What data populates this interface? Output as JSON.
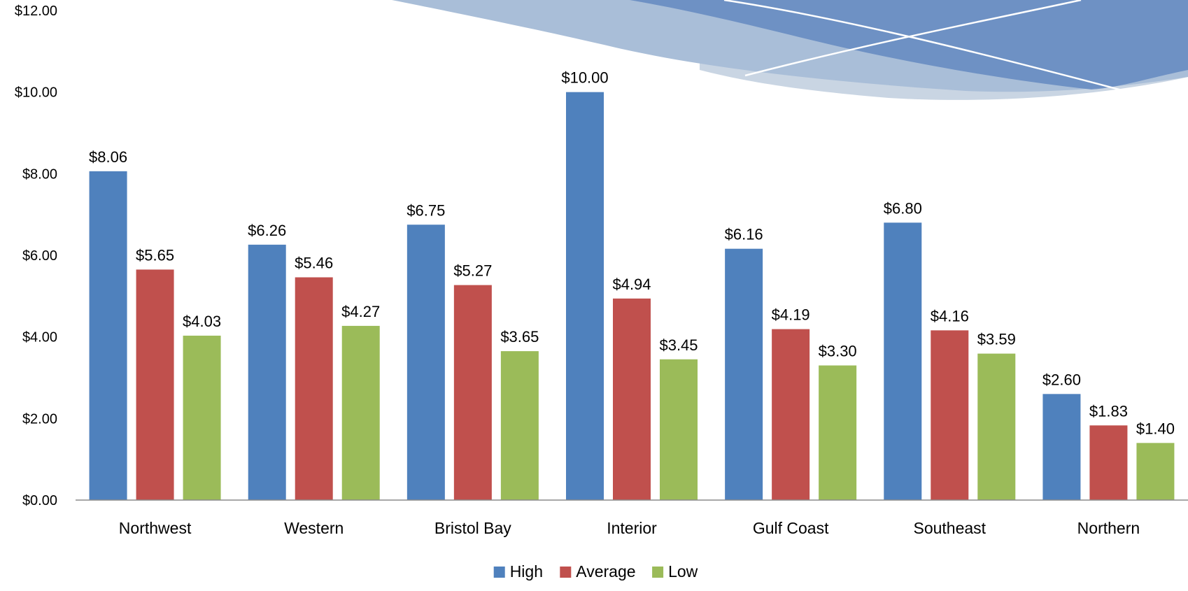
{
  "chart_data": {
    "type": "bar",
    "categories": [
      "Northwest",
      "Western",
      "Bristol Bay",
      "Interior",
      "Gulf Coast",
      "Southeast",
      "Northern"
    ],
    "series": [
      {
        "name": "High",
        "color": "#4F81BD",
        "values": [
          8.06,
          6.26,
          6.75,
          10.0,
          6.16,
          6.8,
          2.6
        ],
        "labels": [
          "$8.06",
          "$6.26",
          "$6.75",
          "$10.00",
          "$6.16",
          "$6.80",
          "$2.60"
        ]
      },
      {
        "name": "Average",
        "color": "#C0504D",
        "values": [
          5.65,
          5.46,
          5.27,
          4.94,
          4.19,
          4.16,
          1.83
        ],
        "labels": [
          "$5.65",
          "$5.46",
          "$5.27",
          "$4.94",
          "$4.19",
          "$4.16",
          "$1.83"
        ]
      },
      {
        "name": "Low",
        "color": "#9BBB59",
        "values": [
          4.03,
          4.27,
          3.65,
          3.45,
          3.3,
          3.59,
          1.4
        ],
        "labels": [
          "$4.03",
          "$4.27",
          "$3.65",
          "$3.45",
          "$3.30",
          "$3.59",
          "$1.40"
        ]
      }
    ],
    "ylim": [
      0,
      12
    ],
    "y_ticks": [
      0,
      2,
      4,
      6,
      8,
      10,
      12
    ],
    "y_tick_labels": [
      "$0.00",
      "$2.00",
      "$4.00",
      "$6.00",
      "$8.00",
      "$10.00",
      "$12.00"
    ],
    "grid": false,
    "legend_position": "bottom-center"
  },
  "decoration": {
    "wave_colors": [
      "#5B82BE",
      "#A9BED8",
      "#C9D5E3"
    ]
  }
}
